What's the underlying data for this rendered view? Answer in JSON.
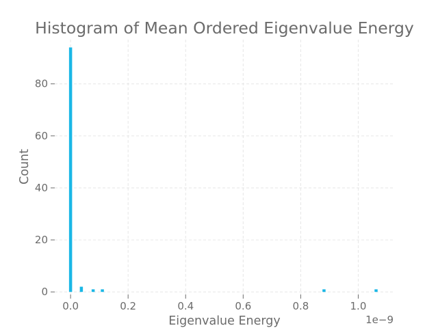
{
  "chart_data": {
    "type": "bar",
    "title": "Histogram of Mean Ordered Eigenvalue Energy",
    "xlabel": "Eigenvalue Energy",
    "ylabel": "Count",
    "x_offset_label": "1e−9",
    "xlim": [
      -0.055,
      1.125
    ],
    "ylim": [
      -1,
      97
    ],
    "xticks": [
      0.0,
      0.2,
      0.4,
      0.6,
      0.8,
      1.0
    ],
    "xtick_labels": [
      "0.0",
      "0.2",
      "0.4",
      "0.6",
      "0.8",
      "1.0"
    ],
    "yticks": [
      0,
      20,
      40,
      60,
      80
    ],
    "ytick_labels": [
      "0",
      "20",
      "40",
      "60",
      "80"
    ],
    "grid": true,
    "bin_width": 0.0107,
    "bars": [
      {
        "x": 0.0,
        "count": 94
      },
      {
        "x": 0.0375,
        "count": 2
      },
      {
        "x": 0.0785,
        "count": 1
      },
      {
        "x": 0.1105,
        "count": 1
      },
      {
        "x": 0.881,
        "count": 1
      },
      {
        "x": 1.062,
        "count": 1
      }
    ],
    "colors": {
      "bar": "#1ab7e6",
      "text": "#6b6b6b",
      "grid": "#e6e6e6"
    }
  }
}
